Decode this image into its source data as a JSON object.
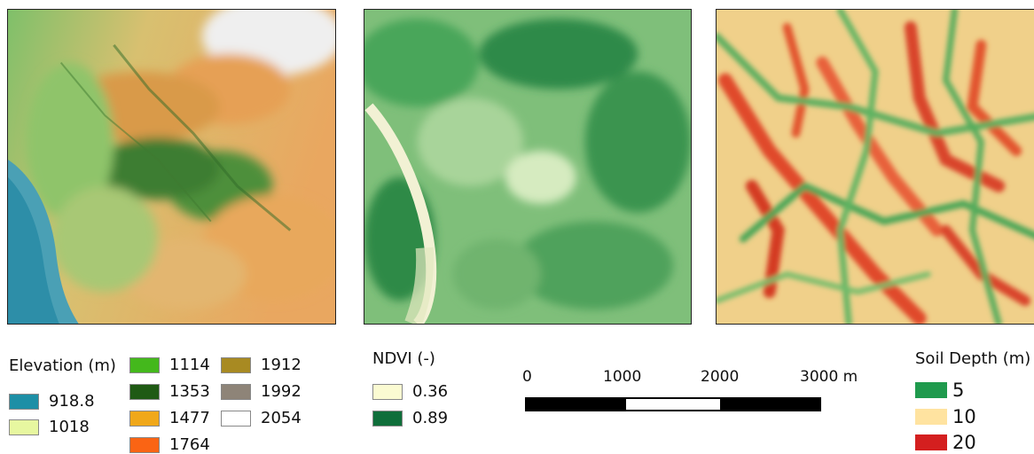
{
  "elevation_legend": {
    "title": "Elevation (m)",
    "items": [
      {
        "label": "918.8",
        "color": "#1d8fa6"
      },
      {
        "label": "1018",
        "color": "#e7f7a0"
      },
      {
        "label": "1114",
        "color": "#44b81c"
      },
      {
        "label": "1353",
        "color": "#1f5a14"
      },
      {
        "label": "1477",
        "color": "#f0a81a"
      },
      {
        "label": "1764",
        "color": "#fa6414"
      },
      {
        "label": "1912",
        "color": "#a88a22"
      },
      {
        "label": "1992",
        "color": "#8e8478"
      },
      {
        "label": "2054",
        "color": "#ffffff"
      }
    ]
  },
  "ndvi_legend": {
    "title": "NDVI (-)",
    "items": [
      {
        "label": "0.36",
        "color": "#fbfbd2"
      },
      {
        "label": "0.89",
        "color": "#0f6e3a"
      }
    ]
  },
  "scale_bar": {
    "ticks": [
      "0",
      "1000",
      "2000",
      "3000 m"
    ],
    "segment_colors": [
      "#000000",
      "#ffffff",
      "#000000"
    ]
  },
  "soil_legend": {
    "title": "Soil Depth (m)",
    "items": [
      {
        "label": "5",
        "color": "#1f9a4d"
      },
      {
        "label": "10",
        "color": "#ffe3a0"
      },
      {
        "label": "20",
        "color": "#d41f1f"
      }
    ]
  }
}
